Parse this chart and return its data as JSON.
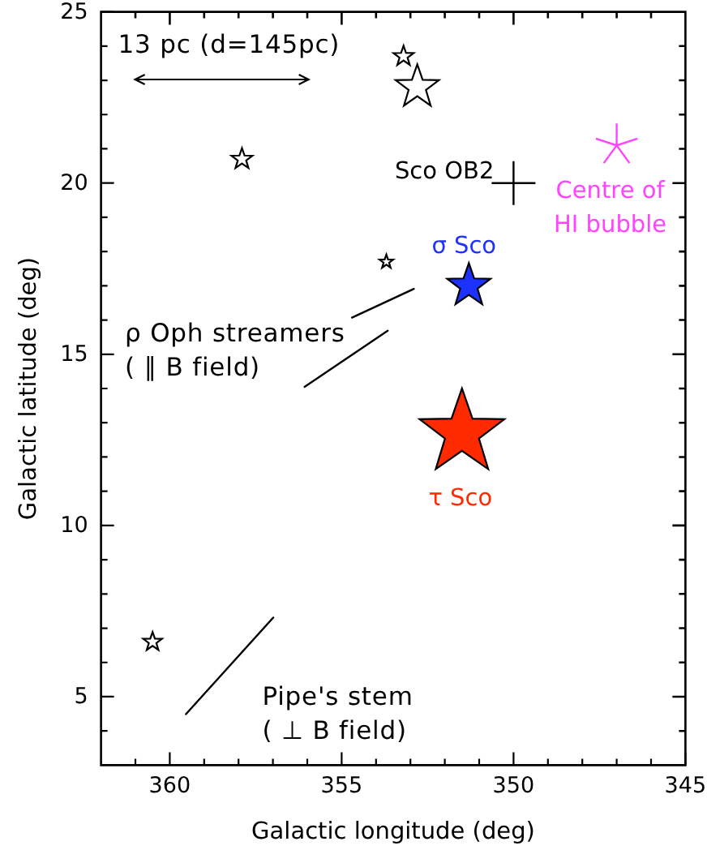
{
  "chart_data": {
    "type": "bubble",
    "xlabel": "Galactic longitude (deg)",
    "ylabel": "Galactic latitude (deg)",
    "xlim": [
      362,
      345
    ],
    "ylim": [
      3,
      25
    ],
    "xticks": [
      {
        "value": 361,
        "label": null
      },
      360,
      {
        "value": 359,
        "label": null
      },
      {
        "value": 358,
        "label": null
      },
      {
        "value": 357,
        "label": null
      },
      {
        "value": 356,
        "label": null
      },
      355,
      {
        "value": 354,
        "label": null
      },
      {
        "value": 353,
        "label": null
      },
      {
        "value": 352,
        "label": null
      },
      {
        "value": 351,
        "label": null
      },
      350,
      {
        "value": 349,
        "label": null
      },
      {
        "value": 348,
        "label": null
      },
      {
        "value": 347,
        "label": null
      },
      {
        "value": 346,
        "label": null
      },
      345
    ],
    "yticks": [
      {
        "value": 4,
        "label": null
      },
      5,
      {
        "value": 6,
        "label": null
      },
      {
        "value": 7,
        "label": null
      },
      {
        "value": 8,
        "label": null
      },
      {
        "value": 9,
        "label": null
      },
      10,
      {
        "value": 11,
        "label": null
      },
      {
        "value": 12,
        "label": null
      },
      {
        "value": 13,
        "label": null
      },
      {
        "value": 14,
        "label": null
      },
      15,
      {
        "value": 16,
        "label": null
      },
      {
        "value": 17,
        "label": null
      },
      {
        "value": 18,
        "label": null
      },
      {
        "value": 19,
        "label": null
      },
      20,
      {
        "value": 21,
        "label": null
      },
      {
        "value": 22,
        "label": null
      },
      {
        "value": 23,
        "label": null
      },
      {
        "value": 24,
        "label": null
      },
      25
    ],
    "series": [
      {
        "marker": "star",
        "color": "#ffffff",
        "x": [
          353.2,
          352.8,
          357.9,
          353.7,
          360.5
        ],
        "values": [
          23.7,
          22.8,
          20.7,
          17.7,
          6.6
        ],
        "sizes": [
          0.056,
          0.26,
          0.061,
          0.026,
          0.049
        ]
      },
      {
        "marker": "star",
        "name": "σ Sco",
        "color": "#1e32ff",
        "x": [
          351.3
        ],
        "values": [
          17.0
        ],
        "sizes": [
          0.26
        ]
      },
      {
        "marker": "star",
        "name": "τ Sco",
        "color": "#ff2a00",
        "x": [
          351.5
        ],
        "values": [
          12.7
        ],
        "sizes": [
          1
        ]
      },
      {
        "type": "scatter",
        "marker": "cross",
        "name": "Sco OB2",
        "color": "#000000",
        "x": [
          350
        ],
        "values": [
          20
        ]
      },
      {
        "type": "scatter",
        "marker": "star",
        "name": "Centre of HI bubble",
        "color": "#ff44ff",
        "x": [
          347
        ],
        "values": [
          21.1
        ]
      },
      {
        "type": "line",
        "color": "#000000",
        "x": [
          354.7,
          352.9
        ],
        "values": [
          16.07,
          16.91
        ]
      },
      {
        "type": "line",
        "color": "#000000",
        "x": [
          356.08,
          353.66
        ],
        "values": [
          14.05,
          15.69
        ]
      },
      {
        "type": "line",
        "color": "#000000",
        "x": [
          359.53,
          356.99
        ],
        "values": [
          4.49,
          7.31
        ]
      }
    ],
    "annotations": [
      "13 pc (d=145pc)",
      "ρ Oph streamers ( ∥ B field)",
      "Pipe's stem ( ⊥ B field)"
    ]
  }
}
